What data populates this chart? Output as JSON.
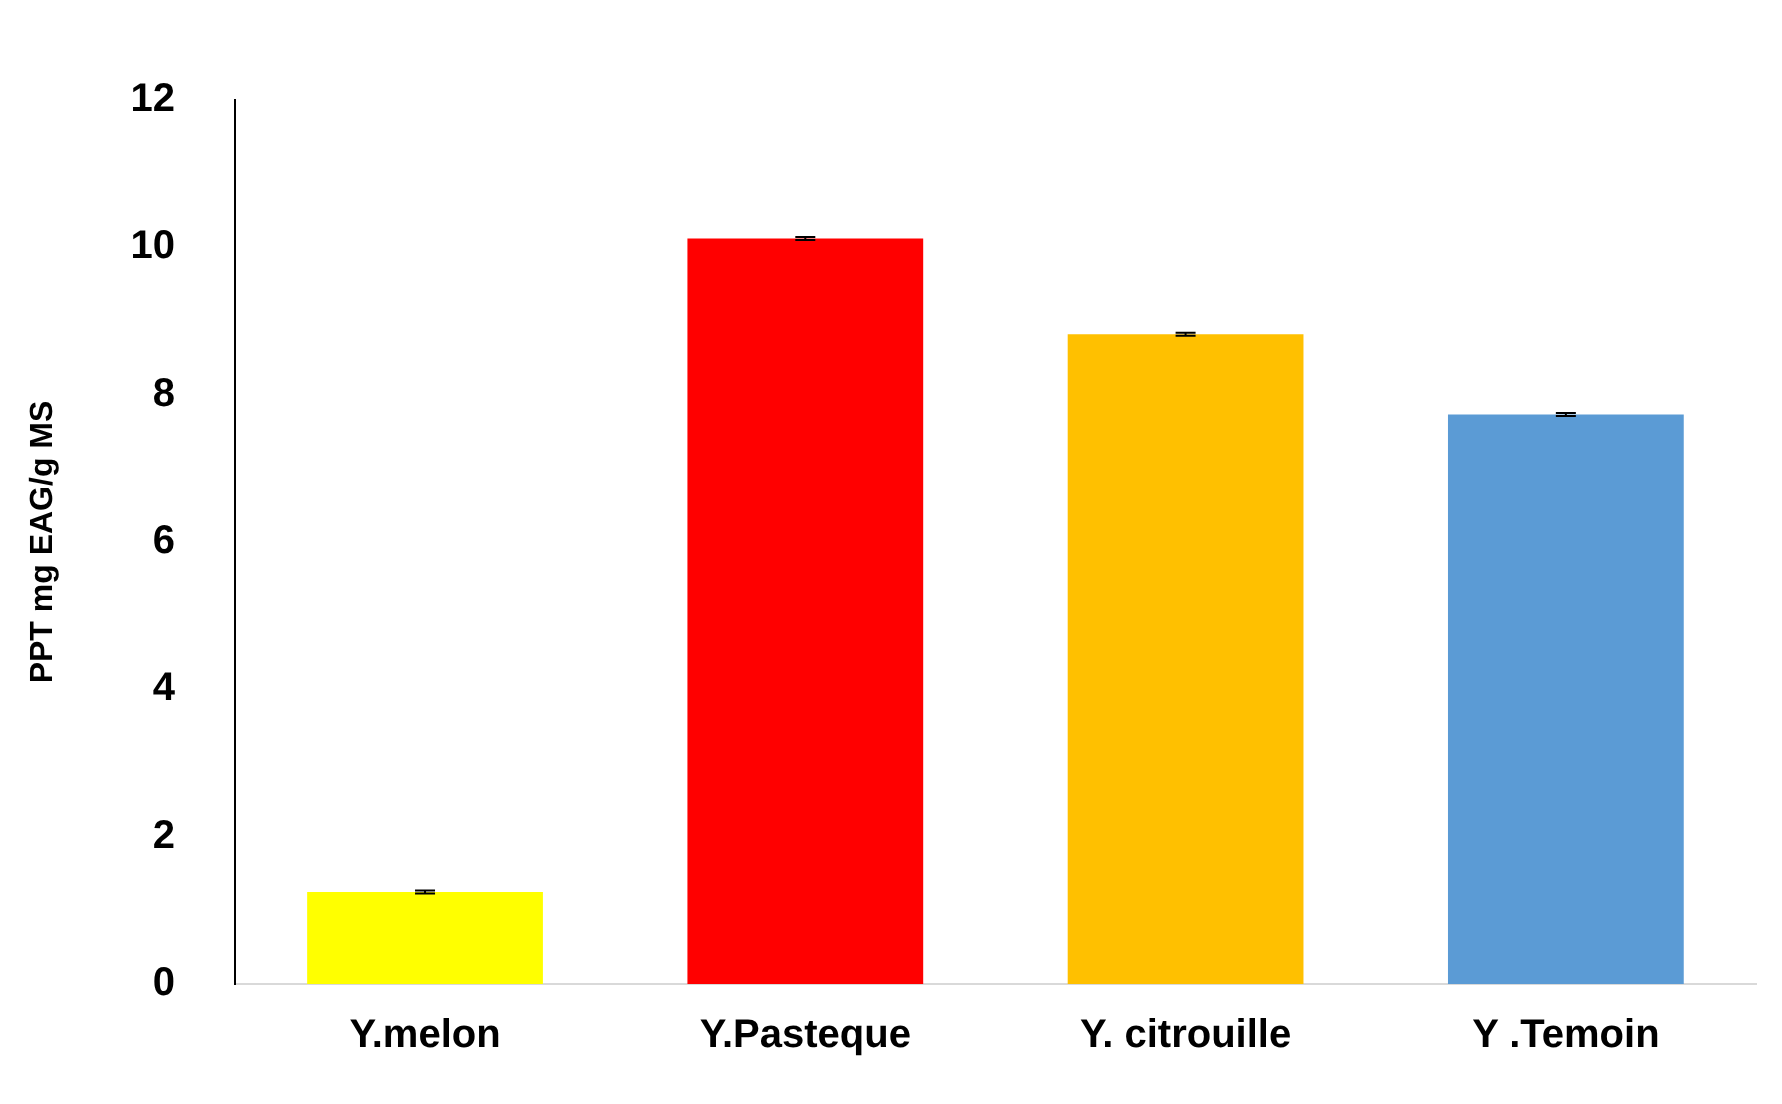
{
  "chart_data": {
    "type": "bar",
    "ylabel": "PPT mg EAG/g MS",
    "categories": [
      "Y.melon",
      "Y.Pasteque",
      "Y. citrouille",
      "Y .Temoin"
    ],
    "values": [
      1.25,
      10.12,
      8.82,
      7.73
    ],
    "colors": [
      "#ffff00",
      "#ff0000",
      "#ffc000",
      "#5b9bd5"
    ],
    "errors": [
      0.02,
      0.02,
      0.02,
      0.02
    ],
    "ylim": [
      0,
      12
    ],
    "yticks": [
      0,
      2,
      4,
      6,
      8,
      10,
      12
    ],
    "grid": false,
    "legend": false
  }
}
